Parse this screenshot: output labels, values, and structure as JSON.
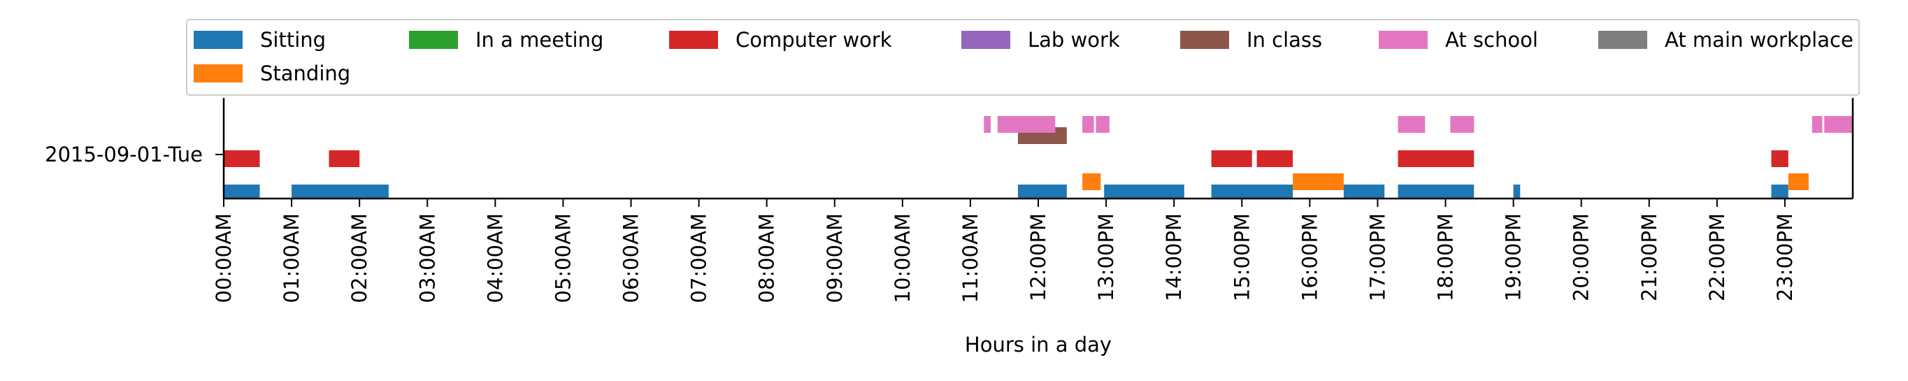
{
  "chart_data": {
    "type": "timeline",
    "xlabel": "Hours in a day",
    "x_range_hours": [
      0,
      24
    ],
    "row_label": "2015-09-01-Tue",
    "ticks": [
      "00:00AM",
      "01:00AM",
      "02:00AM",
      "03:00AM",
      "04:00AM",
      "05:00AM",
      "06:00AM",
      "07:00AM",
      "08:00AM",
      "09:00AM",
      "10:00AM",
      "11:00AM",
      "12:00PM",
      "13:00PM",
      "14:00PM",
      "15:00PM",
      "16:00PM",
      "17:00PM",
      "18:00PM",
      "19:00PM",
      "20:00PM",
      "21:00PM",
      "22:00PM",
      "23:00PM"
    ],
    "legend_position": "top",
    "series": [
      {
        "name": "Sitting",
        "color": "#1f77b4",
        "intervals": [
          [
            0.0,
            0.53
          ],
          [
            1.0,
            2.43
          ],
          [
            11.7,
            12.42
          ],
          [
            12.97,
            14.15
          ],
          [
            14.55,
            15.75
          ],
          [
            16.5,
            17.1
          ],
          [
            17.3,
            18.42
          ],
          [
            19.0,
            19.1
          ],
          [
            22.8,
            23.05
          ]
        ]
      },
      {
        "name": "In a meeting",
        "color": "#2ca02c",
        "intervals": []
      },
      {
        "name": "Computer work",
        "color": "#d62728",
        "intervals": [
          [
            0.0,
            0.53
          ],
          [
            1.55,
            2.0
          ],
          [
            14.55,
            15.15
          ],
          [
            15.22,
            15.75
          ],
          [
            17.3,
            18.42
          ],
          [
            22.8,
            23.05
          ]
        ]
      },
      {
        "name": "Lab work",
        "color": "#9467bd",
        "intervals": []
      },
      {
        "name": "In class",
        "color": "#8c564b",
        "intervals": [
          [
            11.7,
            12.42
          ]
        ]
      },
      {
        "name": "At school",
        "color": "#e377c2",
        "intervals": [
          [
            11.2,
            11.3
          ],
          [
            11.4,
            12.25
          ],
          [
            12.65,
            12.82
          ],
          [
            12.85,
            13.05
          ],
          [
            17.3,
            17.7
          ],
          [
            18.07,
            18.42
          ],
          [
            23.4,
            23.55
          ],
          [
            23.58,
            24.0
          ]
        ]
      },
      {
        "name": "At main workplace",
        "color": "#7f7f7f",
        "intervals": []
      },
      {
        "name": "Standing",
        "color": "#ff7f0e",
        "intervals": [
          [
            12.65,
            12.92
          ],
          [
            15.75,
            16.5
          ],
          [
            23.05,
            23.35
          ]
        ]
      }
    ]
  }
}
